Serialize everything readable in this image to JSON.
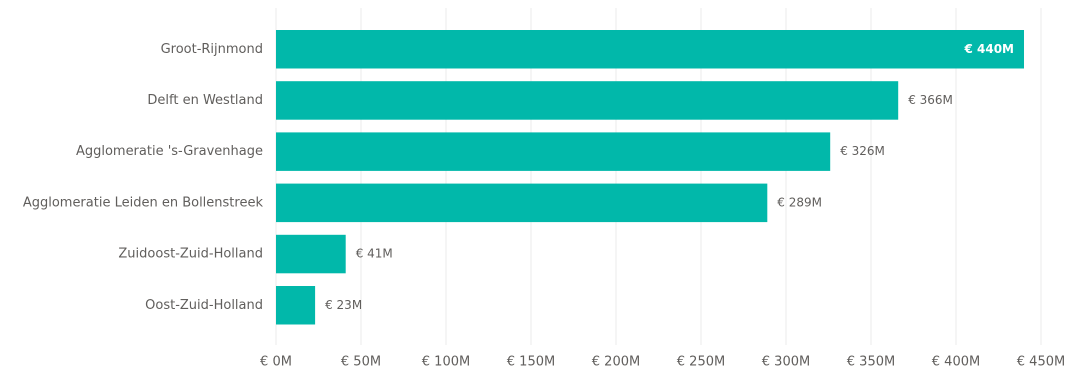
{
  "chart_data": {
    "type": "bar",
    "orientation": "horizontal",
    "title": "",
    "xlabel": "",
    "ylabel": "",
    "categories": [
      "Groot-Rijnmond",
      "Delft en Westland",
      "Agglomeratie 's-Gravenhage",
      "Agglomeratie Leiden en Bollenstreek",
      "Zuidoost-Zuid-Holland",
      "Oost-Zuid-Holland"
    ],
    "values": [
      440,
      366,
      326,
      289,
      41,
      23
    ],
    "value_labels": [
      "€ 440M",
      "€ 366M",
      "€ 326M",
      "€ 289M",
      "€ 41M",
      "€ 23M"
    ],
    "xlim": [
      0,
      450
    ],
    "x_ticks": [
      0,
      50,
      100,
      150,
      200,
      250,
      300,
      350,
      400,
      450
    ],
    "x_tick_labels": [
      "€ 0M",
      "€ 50M",
      "€ 100M",
      "€ 150M",
      "€ 200M",
      "€ 250M",
      "€ 300M",
      "€ 350M",
      "€ 400M",
      "€ 450M"
    ],
    "grid": true,
    "legend": "none",
    "bar_color": "#01b8aa"
  }
}
